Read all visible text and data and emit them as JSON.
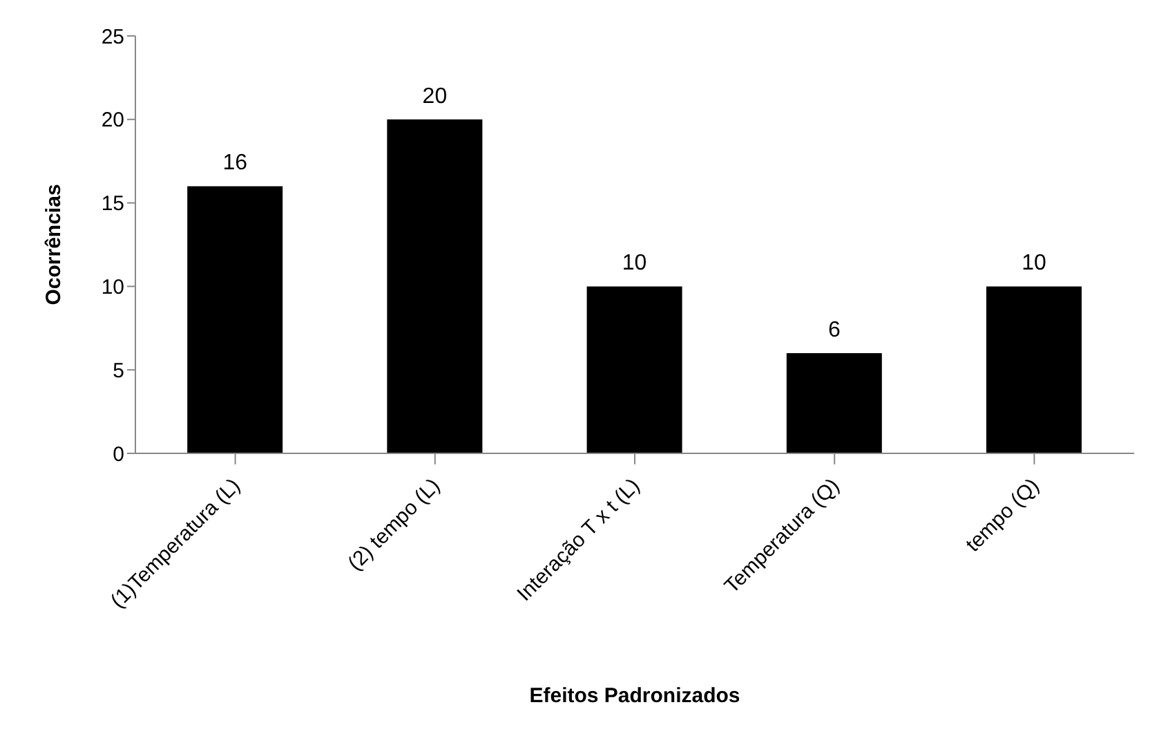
{
  "chart_data": {
    "type": "bar",
    "xlabel": "Efeitos Padronizados",
    "ylabel": "Ocorrências",
    "categories": [
      "(1)Temperatura (L)",
      "(2) tempo (L)",
      "Interação T x t (L)",
      "Temperatura (Q)",
      "tempo (Q)"
    ],
    "values": [
      16,
      20,
      10,
      6,
      10
    ],
    "color": "#000000",
    "ylim": [
      0,
      25
    ],
    "yticks": [
      0,
      5,
      10,
      15,
      20,
      25
    ],
    "data_labels": true
  }
}
